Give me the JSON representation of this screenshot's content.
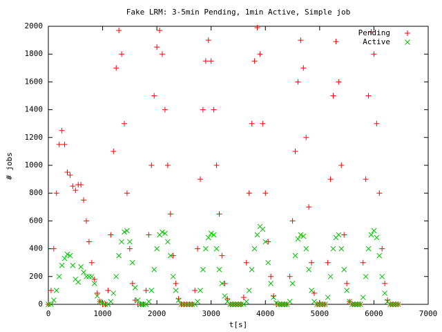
{
  "chart_data": {
    "type": "scatter",
    "title": "Fake LRM: 3-5min Pending, 1min Active, Simple job",
    "x_label": "t[s]",
    "y_label": "# jobs",
    "xlim": [
      0,
      7000
    ],
    "xticks": [
      0,
      1000,
      2000,
      3000,
      4000,
      5000,
      6000,
      7000
    ],
    "ylim": [
      0,
      2000
    ],
    "yticks": [
      0,
      200,
      400,
      600,
      800,
      1000,
      1200,
      1400,
      1600,
      1800,
      2000
    ],
    "legend": "top-right",
    "x": [
      0,
      50,
      100,
      150,
      200,
      250,
      300,
      350,
      400,
      450,
      500,
      550,
      600,
      650,
      700,
      750,
      800,
      850,
      900,
      950,
      1000,
      1050,
      1100,
      1150,
      1200,
      1250,
      1300,
      1350,
      1400,
      1450,
      1500,
      1550,
      1600,
      1650,
      1700,
      1750,
      1800,
      1850,
      1900,
      1950,
      2000,
      2050,
      2100,
      2150,
      2200,
      2250,
      2300,
      2350,
      2400,
      2450,
      2500,
      2550,
      2600,
      2650,
      2700,
      2750,
      2800,
      2850,
      2900,
      2950,
      3000,
      3050,
      3100,
      3150,
      3200,
      3250,
      3300,
      3350,
      3400,
      3450,
      3500,
      3550,
      3600,
      3650,
      3700,
      3750,
      3800,
      3850,
      3900,
      3950,
      4000,
      4050,
      4100,
      4150,
      4200,
      4250,
      4300,
      4350,
      4400,
      4450,
      4500,
      4550,
      4600,
      4650,
      4700,
      4750,
      4800,
      4850,
      4900,
      4950,
      5000,
      5050,
      5100,
      5150,
      5200,
      5250,
      5300,
      5350,
      5400,
      5450,
      5500,
      5550,
      5600,
      5650,
      5700,
      5750,
      5800,
      5850,
      5900,
      5950,
      6000,
      6050,
      6100,
      6150,
      6200,
      6250,
      6300,
      6350,
      6400,
      6450
    ],
    "series": [
      {
        "name": "Pending",
        "color": "#ff0000",
        "marker": "plus",
        "values": [
          0,
          100,
          400,
          800,
          1150,
          1250,
          1150,
          950,
          930,
          850,
          820,
          860,
          860,
          750,
          600,
          450,
          300,
          180,
          80,
          20,
          0,
          0,
          100,
          500,
          1100,
          1700,
          1970,
          1800,
          1300,
          800,
          400,
          150,
          30,
          0,
          0,
          0,
          100,
          500,
          1000,
          1500,
          1850,
          1970,
          1800,
          1400,
          1000,
          650,
          350,
          150,
          40,
          0,
          0,
          0,
          0,
          0,
          100,
          400,
          900,
          1400,
          1750,
          1900,
          1750,
          1400,
          1000,
          650,
          350,
          150,
          40,
          0,
          0,
          0,
          0,
          0,
          50,
          300,
          800,
          1300,
          1750,
          1990,
          1800,
          1300,
          800,
          450,
          200,
          60,
          0,
          0,
          0,
          0,
          0,
          200,
          600,
          1100,
          1600,
          1900,
          1700,
          1200,
          700,
          300,
          80,
          0,
          0,
          0,
          0,
          300,
          900,
          1500,
          1890,
          1600,
          1000,
          500,
          150,
          20,
          0,
          0,
          0,
          0,
          300,
          900,
          1500,
          1960,
          1800,
          1300,
          800,
          400,
          150,
          30,
          0,
          0,
          0,
          0
        ]
      },
      {
        "name": "Active",
        "color": "#00c000",
        "marker": "cross",
        "values": [
          0,
          0,
          30,
          100,
          200,
          280,
          330,
          360,
          350,
          280,
          180,
          160,
          270,
          230,
          200,
          200,
          200,
          150,
          60,
          20,
          10,
          0,
          0,
          20,
          80,
          200,
          350,
          450,
          520,
          530,
          450,
          300,
          120,
          30,
          0,
          0,
          0,
          20,
          100,
          250,
          400,
          500,
          520,
          510,
          450,
          350,
          200,
          100,
          30,
          0,
          0,
          0,
          0,
          0,
          0,
          20,
          100,
          250,
          400,
          480,
          510,
          500,
          400,
          250,
          150,
          60,
          20,
          0,
          0,
          0,
          0,
          0,
          0,
          20,
          100,
          250,
          400,
          500,
          560,
          540,
          450,
          300,
          150,
          50,
          10,
          0,
          0,
          0,
          0,
          20,
          150,
          350,
          470,
          500,
          490,
          400,
          250,
          100,
          20,
          0,
          0,
          0,
          0,
          50,
          200,
          400,
          480,
          500,
          400,
          250,
          100,
          20,
          0,
          0,
          0,
          0,
          50,
          200,
          400,
          500,
          530,
          480,
          350,
          200,
          80,
          20,
          0,
          0,
          0,
          0
        ]
      }
    ]
  }
}
